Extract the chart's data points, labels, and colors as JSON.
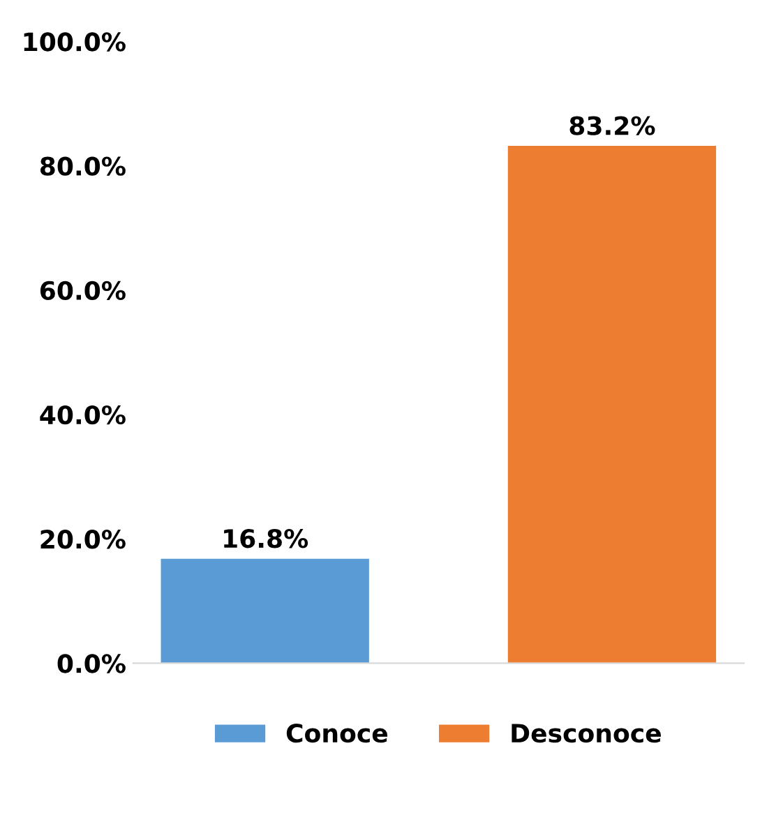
{
  "chart_data": {
    "type": "bar",
    "categories": [
      null
    ],
    "series": [
      {
        "name": "Conoce",
        "color": "#5b9bd5",
        "values": [
          16.8
        ],
        "value_labels": [
          "16.8%"
        ]
      },
      {
        "name": "Desconoce",
        "color": "#ed7d31",
        "values": [
          83.2
        ],
        "value_labels": [
          "83.2%"
        ]
      }
    ],
    "ylim": [
      0,
      100
    ],
    "yticks": [
      {
        "value": 0,
        "label": "0.0%"
      },
      {
        "value": 20,
        "label": "20.0%"
      },
      {
        "value": 40,
        "label": "40.0%"
      },
      {
        "value": 60,
        "label": "60.0%"
      },
      {
        "value": 80,
        "label": "80.0%"
      },
      {
        "value": 100,
        "label": "100.0%"
      }
    ],
    "legend": "bottom"
  }
}
